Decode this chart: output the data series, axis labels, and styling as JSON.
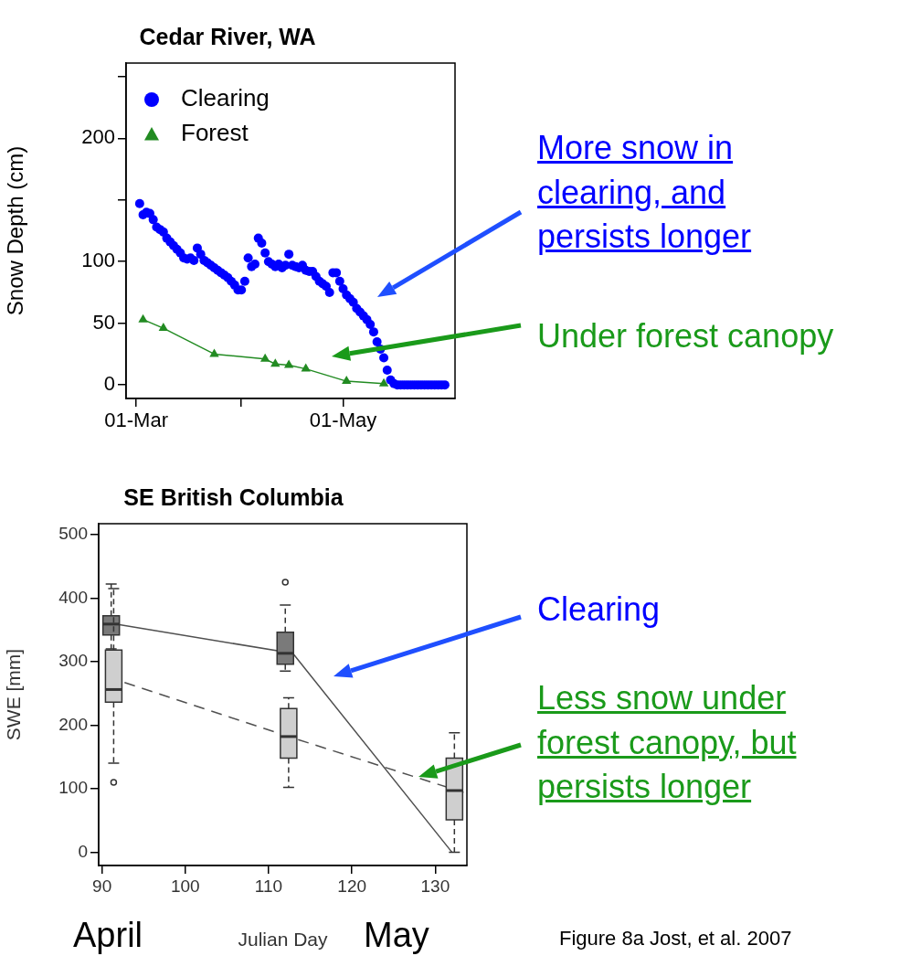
{
  "chart_data": [
    {
      "type": "scatter",
      "title": "Cedar River, WA",
      "ylabel": "Snow Depth (cm)",
      "xlim": [
        "--02-26",
        "--06-03"
      ],
      "ylim": [
        -11,
        261
      ],
      "xticks": [
        {
          "value": "--03-01",
          "label": "01-Mar"
        },
        {
          "value": "--04-01",
          "label": null
        },
        {
          "value": "--05-01",
          "label": "01-May"
        }
      ],
      "yticks": [
        0,
        50,
        100,
        {
          "value": 150,
          "label": null
        },
        200,
        {
          "value": 250,
          "label": null
        }
      ],
      "legend": "top left",
      "series": [
        {
          "name": "Clearing",
          "marker": "circle",
          "color": "#0000ff",
          "x": [
            "--03-02",
            "--03-03",
            "--03-04",
            "--03-05",
            "--03-06",
            "--03-07",
            "--03-08",
            "--03-09",
            "--03-10",
            "--03-11",
            "--03-12",
            "--03-13",
            "--03-14",
            "--03-15",
            "--03-16",
            "--03-17",
            "--03-18",
            "--03-19",
            "--03-20",
            "--03-21",
            "--03-22",
            "--03-23",
            "--03-24",
            "--03-25",
            "--03-26",
            "--03-27",
            "--03-28",
            "--03-29",
            "--03-30",
            "--03-31",
            "--04-01",
            "--04-02",
            "--04-03",
            "--04-04",
            "--04-05",
            "--04-06",
            "--04-07",
            "--04-08",
            "--04-09",
            "--04-10",
            "--04-11",
            "--04-12",
            "--04-13",
            "--04-14",
            "--04-15",
            "--04-16",
            "--04-17",
            "--04-18",
            "--04-19",
            "--04-20",
            "--04-21",
            "--04-22",
            "--04-23",
            "--04-24",
            "--04-25",
            "--04-26",
            "--04-27",
            "--04-28",
            "--04-29",
            "--04-30",
            "--05-01",
            "--05-02",
            "--05-03",
            "--05-04",
            "--05-05",
            "--05-06",
            "--05-07",
            "--05-08",
            "--05-09",
            "--05-10",
            "--05-11",
            "--05-12",
            "--05-13",
            "--05-14",
            "--05-15",
            "--05-16",
            "--05-17",
            "--05-18",
            "--05-19",
            "--05-20",
            "--05-21",
            "--05-22",
            "--05-23",
            "--05-24",
            "--05-25",
            "--05-26",
            "--05-27",
            "--05-28",
            "--05-29",
            "--05-30",
            "--05-31"
          ],
          "values": [
            147,
            138,
            140,
            139,
            134,
            128,
            126,
            124,
            119,
            116,
            113,
            110,
            107,
            103,
            102,
            103,
            101,
            111,
            106,
            101,
            99,
            97,
            95,
            93,
            91,
            89,
            87,
            84,
            81,
            77,
            77,
            84,
            103,
            96,
            98,
            119,
            115,
            107,
            100,
            98,
            96,
            98,
            95,
            97,
            106,
            97,
            96,
            95,
            97,
            93,
            92,
            92,
            88,
            84,
            82,
            80,
            75,
            91,
            91,
            84,
            78,
            73,
            70,
            67,
            62,
            59,
            56,
            53,
            49,
            43,
            35,
            29,
            22,
            12,
            4,
            1,
            0,
            0,
            0,
            0,
            0,
            0,
            0,
            0,
            0,
            0,
            0,
            0,
            0,
            0,
            0
          ]
        },
        {
          "name": "Forest",
          "type": "line",
          "marker": "triangle",
          "color": "#228b22",
          "x": [
            "--03-03",
            "--03-09",
            "--03-24",
            "--04-08",
            "--04-11",
            "--04-15",
            "--04-20",
            "--05-02",
            "--05-13"
          ],
          "values": [
            53,
            46,
            25,
            21,
            17,
            16,
            13,
            3,
            1
          ]
        }
      ],
      "annotations": [
        "More snow in clearing, and persists longer",
        "Under forest canopy"
      ]
    },
    {
      "type": "box",
      "title": "SE British Columbia",
      "xlabel": "Julian Day",
      "ylabel": "SWE [mm]",
      "xlim": [
        89.6,
        133.8
      ],
      "ylim": [
        -21,
        517
      ],
      "xticks": [
        90,
        100,
        110,
        120,
        130
      ],
      "yticks": [
        0,
        100,
        200,
        300,
        400,
        500
      ],
      "series": [
        {
          "color": "#7a7a7a",
          "x": [
            91.1,
            112
          ],
          "boxes": [
            {
              "low": 320,
              "q1": 342,
              "median": 359,
              "q3": 372,
              "high": 422
            },
            {
              "low": 285,
              "q1": 296,
              "median": 313,
              "q3": 346,
              "high": 389,
              "outliers": [
                425
              ]
            }
          ]
        },
        {
          "color": "#cfcfcf",
          "x": [
            91.4,
            112.4,
            132.3
          ],
          "boxes": [
            {
              "low": 140,
              "q1": 236,
              "median": 256,
              "q3": 318,
              "high": 415,
              "outliers": [
                110
              ]
            },
            {
              "low": 102,
              "q1": 148,
              "median": 182,
              "q3": 226,
              "high": 243
            },
            {
              "low": 0,
              "q1": 51,
              "median": 97,
              "q3": 148,
              "high": 188
            }
          ]
        },
        {
          "type": "line",
          "marker": "none",
          "line_style": "solid",
          "color": "#505050",
          "x": [
            91.6,
            112.9,
            132.0
          ],
          "values": [
            359,
            313,
            0
          ]
        },
        {
          "type": "line",
          "marker": "none",
          "line_style": "dashed",
          "color": "#505050",
          "x": [
            92.7,
            112.4,
            133.4
          ],
          "values": [
            267,
            182,
            94
          ]
        }
      ],
      "annotations": [
        "Clearing",
        "Less snow under forest canopy, but persists longer",
        "April",
        "May",
        "Figure 8a Jost, et al. 2007"
      ]
    }
  ]
}
